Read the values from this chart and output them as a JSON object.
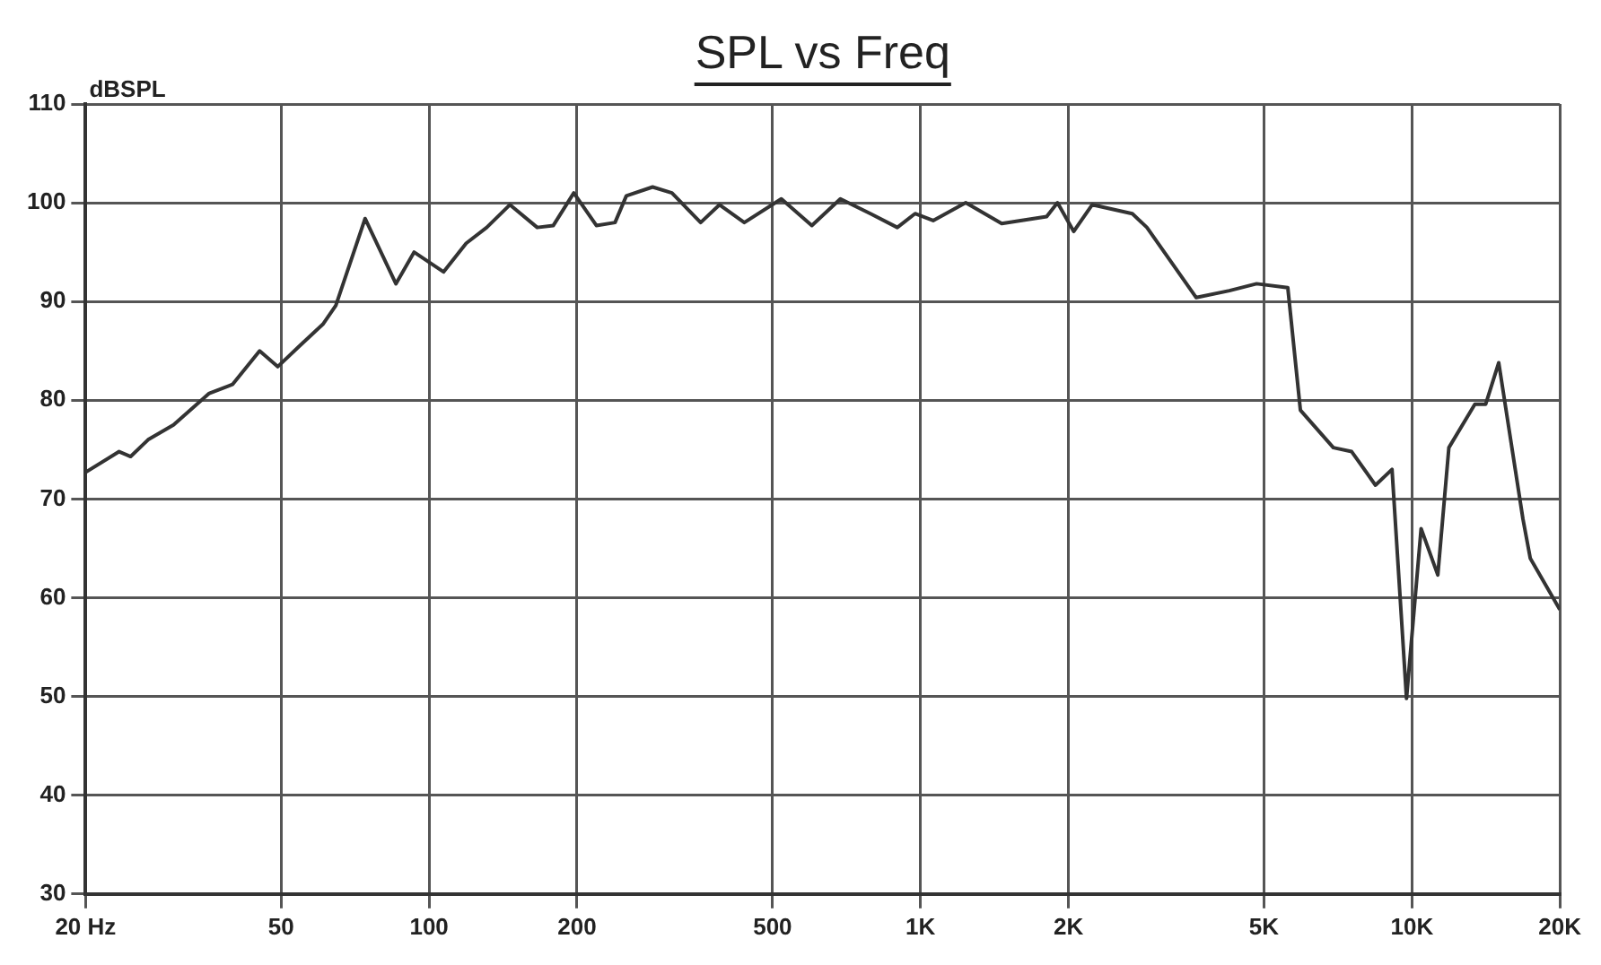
{
  "chart_data": {
    "type": "line",
    "title": "SPL vs Freq",
    "ylabel": "dBSPL",
    "x": [
      20,
      23.4,
      24.7,
      26.8,
      30.2,
      35.7,
      39.8,
      45.2,
      49.2,
      54.5,
      60.8,
      64.6,
      74.1,
      85.6,
      93.2,
      107,
      119,
      131,
      146,
      166,
      179,
      197,
      219,
      239,
      252,
      285,
      312,
      357,
      390,
      438,
      521,
      601,
      687,
      791,
      897,
      975,
      1061,
      1236,
      1463,
      1806,
      1900,
      2050,
      2235,
      2698,
      2889,
      3640,
      4250,
      4830,
      5590,
      5930,
      6920,
      7540,
      8430,
      9110,
      9750,
      10440,
      11290,
      11890,
      13430,
      14130,
      15020,
      16820,
      17410,
      20000
    ],
    "series": [
      {
        "color": "#333333",
        "values": [
          72.7,
          74.8,
          74.3,
          76,
          77.5,
          80.7,
          81.6,
          85,
          83.4,
          85.5,
          87.7,
          89.6,
          98.4,
          91.8,
          95,
          93,
          95.9,
          97.5,
          99.8,
          97.5,
          97.7,
          101,
          97.7,
          98,
          100.7,
          101.6,
          101,
          98,
          99.8,
          98,
          100.4,
          97.7,
          100.4,
          98.9,
          97.5,
          98.9,
          98.2,
          100,
          97.9,
          98.6,
          100,
          97.1,
          99.8,
          98.9,
          97.5,
          90.4,
          91.1,
          91.8,
          91.4,
          79,
          75.2,
          74.8,
          71.4,
          73,
          49.8,
          67,
          62.3,
          75.2,
          79.6,
          79.6,
          83.8,
          68,
          64,
          58.8
        ]
      }
    ],
    "xlim": [
      20,
      20000
    ],
    "xticks": [
      {
        "value": 20,
        "label": "20 Hz"
      },
      50,
      100,
      200,
      500,
      {
        "value": 1000,
        "label": "1K"
      },
      {
        "value": 2000,
        "label": "2K"
      },
      {
        "value": 5000,
        "label": "5K"
      },
      {
        "value": 10000,
        "label": "10K"
      },
      {
        "value": 20000,
        "label": "20K"
      }
    ],
    "ylim": [
      30,
      110
    ],
    "yticks": [
      30,
      40,
      50,
      60,
      70,
      80,
      90,
      100,
      110
    ],
    "log": "x",
    "grid": true,
    "legend": false,
    "marker": "none",
    "line_style": "solid"
  }
}
